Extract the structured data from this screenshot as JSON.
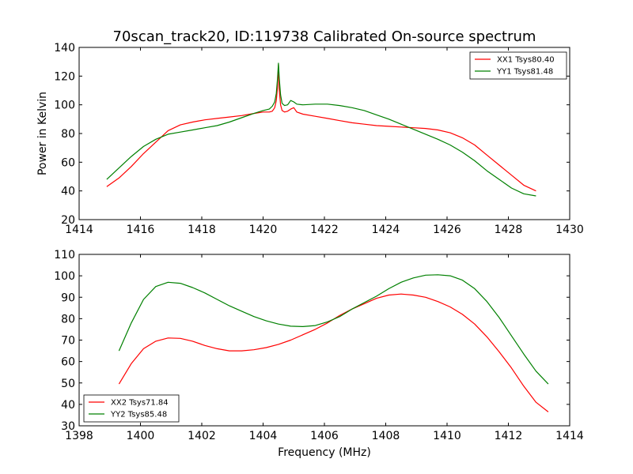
{
  "chart_data": [
    {
      "type": "line",
      "title": "70scan_track20, ID:119738 Calibrated On-source spectrum",
      "xlabel": "",
      "ylabel": "Power in Kelvin",
      "xlim": [
        1414,
        1430
      ],
      "ylim": [
        20,
        140
      ],
      "xticks": [
        1414,
        1416,
        1418,
        1420,
        1422,
        1424,
        1426,
        1428,
        1430
      ],
      "yticks": [
        20,
        40,
        60,
        80,
        100,
        120,
        140
      ],
      "legend_position": "top-right",
      "grid": false,
      "series": [
        {
          "name": "XX1 Tsys80.40",
          "color": "#ff0000",
          "x": [
            1414.9,
            1415.3,
            1415.7,
            1416.1,
            1416.5,
            1416.9,
            1417.3,
            1417.7,
            1418.1,
            1418.5,
            1418.9,
            1419.3,
            1419.7,
            1420.0,
            1420.2,
            1420.3,
            1420.38,
            1420.43,
            1420.47,
            1420.5,
            1420.53,
            1420.57,
            1420.62,
            1420.7,
            1420.8,
            1420.9,
            1421.0,
            1421.1,
            1421.3,
            1421.7,
            1422.1,
            1422.5,
            1422.9,
            1423.3,
            1423.7,
            1424.1,
            1424.5,
            1424.9,
            1425.3,
            1425.7,
            1426.1,
            1426.5,
            1426.9,
            1427.3,
            1427.7,
            1428.1,
            1428.5,
            1428.9
          ],
          "y": [
            43,
            49,
            57,
            66,
            74,
            82,
            86,
            88,
            89.5,
            90.5,
            91.5,
            92.5,
            94,
            95,
            95,
            95.5,
            98,
            103,
            112,
            128,
            110,
            100,
            96,
            95,
            95.5,
            97,
            98,
            95,
            93.5,
            92,
            90.5,
            89,
            87.5,
            86.5,
            85.5,
            85,
            84.5,
            84,
            83.5,
            82.5,
            80.5,
            77,
            72,
            65,
            58,
            51,
            44,
            40
          ]
        },
        {
          "name": "YY1 Tsys81.48",
          "color": "#008000",
          "x": [
            1414.9,
            1415.3,
            1415.7,
            1416.1,
            1416.5,
            1416.9,
            1417.3,
            1417.7,
            1418.1,
            1418.5,
            1418.9,
            1419.3,
            1419.7,
            1420.0,
            1420.2,
            1420.3,
            1420.38,
            1420.43,
            1420.47,
            1420.5,
            1420.53,
            1420.57,
            1420.62,
            1420.7,
            1420.8,
            1420.9,
            1421.0,
            1421.1,
            1421.3,
            1421.7,
            1422.1,
            1422.5,
            1422.9,
            1423.3,
            1423.7,
            1424.1,
            1424.5,
            1424.9,
            1425.3,
            1425.7,
            1426.1,
            1426.5,
            1426.9,
            1427.3,
            1427.7,
            1428.1,
            1428.5,
            1428.9
          ],
          "y": [
            48,
            56,
            64,
            71,
            76,
            79.5,
            81,
            82.5,
            84,
            85.5,
            88,
            91,
            94,
            96,
            97,
            99,
            102,
            108,
            118,
            129,
            118,
            107,
            101,
            99.5,
            100,
            103,
            102,
            100.5,
            100,
            100.5,
            100.5,
            99.5,
            98,
            96,
            93,
            90,
            86.5,
            83,
            79.5,
            76,
            72,
            67,
            61,
            54,
            48,
            42,
            38,
            36.5
          ]
        }
      ]
    },
    {
      "type": "line",
      "title": "",
      "xlabel": "Frequency (MHz)",
      "ylabel": "",
      "xlim": [
        1398,
        1414
      ],
      "ylim": [
        30,
        110
      ],
      "xticks": [
        1398,
        1400,
        1402,
        1404,
        1406,
        1408,
        1410,
        1412,
        1414
      ],
      "yticks": [
        30,
        40,
        50,
        60,
        70,
        80,
        90,
        100,
        110
      ],
      "legend_position": "bottom-left",
      "grid": false,
      "series": [
        {
          "name": "XX2 Tsys71.84",
          "color": "#ff0000",
          "x": [
            1399.3,
            1399.7,
            1400.1,
            1400.5,
            1400.9,
            1401.3,
            1401.7,
            1402.1,
            1402.5,
            1402.9,
            1403.3,
            1403.7,
            1404.1,
            1404.5,
            1404.9,
            1405.3,
            1405.7,
            1406.1,
            1406.5,
            1406.9,
            1407.3,
            1407.7,
            1408.1,
            1408.5,
            1408.9,
            1409.3,
            1409.7,
            1410.1,
            1410.5,
            1410.9,
            1411.3,
            1411.7,
            1412.1,
            1412.5,
            1412.9,
            1413.3
          ],
          "y": [
            49.5,
            59,
            66,
            69.5,
            71,
            70.8,
            69.5,
            67.5,
            66,
            65,
            65,
            65.5,
            66.5,
            68,
            70,
            72.5,
            75,
            78,
            81.5,
            84.5,
            87,
            89.5,
            91,
            91.5,
            91,
            90,
            88,
            85.5,
            82,
            77.5,
            71.5,
            64.5,
            57,
            48.5,
            41,
            36.5
          ]
        },
        {
          "name": "YY2 Tsys85.48",
          "color": "#008000",
          "x": [
            1399.3,
            1399.7,
            1400.1,
            1400.5,
            1400.9,
            1401.3,
            1401.7,
            1402.1,
            1402.5,
            1402.9,
            1403.3,
            1403.7,
            1404.1,
            1404.5,
            1404.9,
            1405.3,
            1405.7,
            1406.1,
            1406.5,
            1406.9,
            1407.3,
            1407.7,
            1408.1,
            1408.5,
            1408.9,
            1409.3,
            1409.7,
            1410.1,
            1410.5,
            1410.9,
            1411.3,
            1411.7,
            1412.1,
            1412.5,
            1412.9,
            1413.3
          ],
          "y": [
            65,
            78,
            89,
            95,
            97,
            96.5,
            94.5,
            92,
            89,
            86,
            83.5,
            81,
            79,
            77.5,
            76.5,
            76.3,
            76.8,
            78.5,
            81,
            84.5,
            87.5,
            90.5,
            94,
            97,
            99,
            100.3,
            100.5,
            100,
            98,
            94,
            88,
            80.5,
            72,
            63.5,
            55.5,
            49.5
          ]
        }
      ]
    }
  ]
}
